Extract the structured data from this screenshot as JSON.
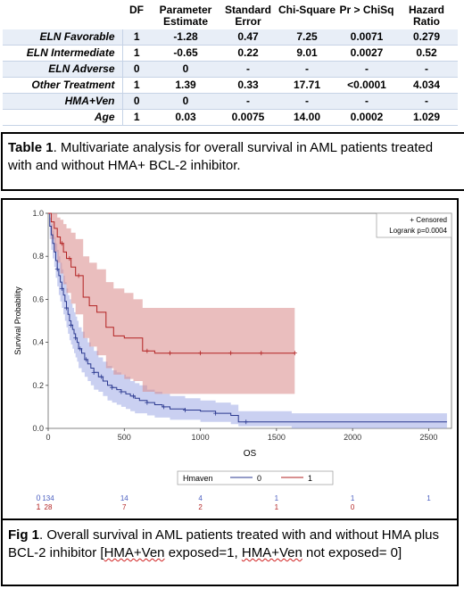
{
  "table": {
    "headers": [
      "",
      "DF",
      "Parameter\nEstimate",
      "Standard\nError",
      "Chi-Square",
      "Pr > ChiSq",
      "Hazard\nRatio"
    ],
    "rows": [
      {
        "label": "ELN Favorable",
        "df": "1",
        "estimate": "-1.28",
        "se": "0.47",
        "chisq": "7.25",
        "p": "0.0071",
        "hr": "0.279"
      },
      {
        "label": "ELN Intermediate",
        "df": "1",
        "estimate": "-0.65",
        "se": "0.22",
        "chisq": "9.01",
        "p": "0.0027",
        "hr": "0.52"
      },
      {
        "label": "ELN Adverse",
        "df": "0",
        "estimate": "0",
        "se": "-",
        "chisq": "-",
        "p": "-",
        "hr": "-"
      },
      {
        "label": "Other Treatment",
        "df": "1",
        "estimate": "1.39",
        "se": "0.33",
        "chisq": "17.71",
        "p": "<0.0001",
        "hr": "4.034"
      },
      {
        "label": "HMA+Ven",
        "df": "0",
        "estimate": "0",
        "se": "-",
        "chisq": "-",
        "p": "-",
        "hr": "-"
      },
      {
        "label": "Age",
        "df": "1",
        "estimate": "0.03",
        "se": "0.0075",
        "chisq": "14.00",
        "p": "0.0002",
        "hr": "1.029"
      }
    ],
    "caption_label": "Table 1",
    "caption_text": ". Multivariate analysis for overall survival in AML patients treated with and without HMA+ BCL-2 inhibitor."
  },
  "figure": {
    "caption_label": "Fig 1",
    "caption_pre": ". Overall survival in AML patients treated with and without HMA plus BCL-2 inhibitor [",
    "caption_sq1": "HMA+Ven",
    "caption_mid": " exposed=1, ",
    "caption_sq2": "HMA+Ven",
    "caption_post": " not exposed= 0]"
  },
  "chart_data": {
    "type": "line",
    "xlabel": "OS",
    "ylabel": "Survival Probability",
    "xlim": [
      0,
      2650
    ],
    "ylim": [
      0,
      1.0
    ],
    "x_ticks": [
      0,
      500,
      1000,
      1500,
      2000,
      2500
    ],
    "y_ticks": [
      0.0,
      0.2,
      0.4,
      0.6,
      0.8,
      1.0
    ],
    "y_tick_labels": [
      "0.0",
      "0.2",
      "0.4",
      "0.6",
      "0.8",
      "1.0"
    ],
    "inset": {
      "censored_label": "+ Censored",
      "logrank": "Logrank p=0.0004"
    },
    "legend": {
      "title": "Hmaven",
      "placement": "bottom"
    },
    "series": [
      {
        "name": "0",
        "color": "#2b3990",
        "band_color": "#9fa9e6",
        "x": [
          0,
          10,
          20,
          30,
          40,
          50,
          60,
          70,
          80,
          90,
          100,
          110,
          120,
          130,
          140,
          150,
          160,
          170,
          180,
          190,
          200,
          220,
          240,
          260,
          280,
          300,
          330,
          360,
          390,
          420,
          450,
          480,
          510,
          540,
          570,
          600,
          650,
          700,
          750,
          800,
          900,
          1000,
          1100,
          1200,
          1250,
          1400,
          1600,
          2000,
          2620
        ],
        "y": [
          1.0,
          0.94,
          0.9,
          0.86,
          0.82,
          0.78,
          0.74,
          0.71,
          0.68,
          0.65,
          0.62,
          0.59,
          0.56,
          0.53,
          0.5,
          0.48,
          0.46,
          0.44,
          0.42,
          0.4,
          0.37,
          0.35,
          0.32,
          0.3,
          0.28,
          0.26,
          0.24,
          0.22,
          0.2,
          0.19,
          0.18,
          0.17,
          0.16,
          0.15,
          0.14,
          0.13,
          0.12,
          0.11,
          0.1,
          0.09,
          0.085,
          0.08,
          0.07,
          0.06,
          0.03,
          0.03,
          0.03,
          0.03,
          0.03
        ],
        "upper": [
          1.0,
          0.98,
          0.95,
          0.92,
          0.89,
          0.86,
          0.83,
          0.8,
          0.77,
          0.74,
          0.71,
          0.68,
          0.65,
          0.62,
          0.6,
          0.58,
          0.56,
          0.54,
          0.52,
          0.5,
          0.47,
          0.45,
          0.42,
          0.4,
          0.38,
          0.36,
          0.33,
          0.31,
          0.29,
          0.27,
          0.26,
          0.25,
          0.24,
          0.22,
          0.21,
          0.2,
          0.18,
          0.17,
          0.16,
          0.15,
          0.14,
          0.13,
          0.12,
          0.11,
          0.08,
          0.08,
          0.07,
          0.07,
          0.06
        ],
        "lower": [
          1.0,
          0.88,
          0.83,
          0.79,
          0.75,
          0.7,
          0.66,
          0.62,
          0.59,
          0.56,
          0.53,
          0.5,
          0.47,
          0.44,
          0.41,
          0.39,
          0.37,
          0.35,
          0.33,
          0.31,
          0.28,
          0.26,
          0.24,
          0.22,
          0.2,
          0.18,
          0.17,
          0.15,
          0.13,
          0.12,
          0.11,
          0.1,
          0.09,
          0.08,
          0.07,
          0.07,
          0.06,
          0.05,
          0.05,
          0.04,
          0.04,
          0.03,
          0.03,
          0.02,
          0.01,
          0.01,
          0.0,
          0.0,
          0.0
        ],
        "censored_x": [
          60,
          90,
          120,
          150,
          180,
          210,
          250,
          300,
          350,
          420,
          480,
          560,
          650,
          760,
          900,
          1100,
          1300
        ]
      },
      {
        "name": "1",
        "color": "#b22222",
        "band_color": "#d98888",
        "x": [
          0,
          20,
          40,
          60,
          80,
          100,
          120,
          150,
          180,
          230,
          270,
          320,
          380,
          430,
          500,
          560,
          620,
          700,
          900,
          1000,
          1200,
          1400,
          1620
        ],
        "y": [
          1.0,
          0.96,
          0.93,
          0.89,
          0.86,
          0.82,
          0.79,
          0.75,
          0.71,
          0.61,
          0.57,
          0.54,
          0.47,
          0.43,
          0.42,
          0.42,
          0.36,
          0.35,
          0.35,
          0.35,
          0.35,
          0.35,
          0.35
        ],
        "upper": [
          1.0,
          1.0,
          1.0,
          0.98,
          0.97,
          0.95,
          0.93,
          0.91,
          0.88,
          0.8,
          0.77,
          0.74,
          0.68,
          0.65,
          0.63,
          0.6,
          0.56,
          0.56,
          0.56,
          0.56,
          0.56,
          0.56,
          0.56
        ],
        "lower": [
          1.0,
          0.88,
          0.82,
          0.77,
          0.72,
          0.67,
          0.63,
          0.58,
          0.53,
          0.42,
          0.38,
          0.34,
          0.28,
          0.25,
          0.23,
          0.22,
          0.17,
          0.16,
          0.16,
          0.16,
          0.16,
          0.16,
          0.16
        ],
        "censored_x": [
          90,
          140,
          200,
          650,
          800,
          1000,
          1200,
          1400,
          1620
        ]
      }
    ],
    "at_risk": {
      "times": [
        0,
        500,
        1000,
        1500,
        2000,
        2500
      ],
      "rows": [
        {
          "label": "0",
          "color": "#4a5ec0",
          "values": [
            "134",
            "14",
            "4",
            "1",
            "1",
            "1"
          ]
        },
        {
          "label": "1",
          "color": "#b22222",
          "values": [
            "28",
            "7",
            "2",
            "1",
            "0",
            ""
          ]
        }
      ]
    }
  }
}
